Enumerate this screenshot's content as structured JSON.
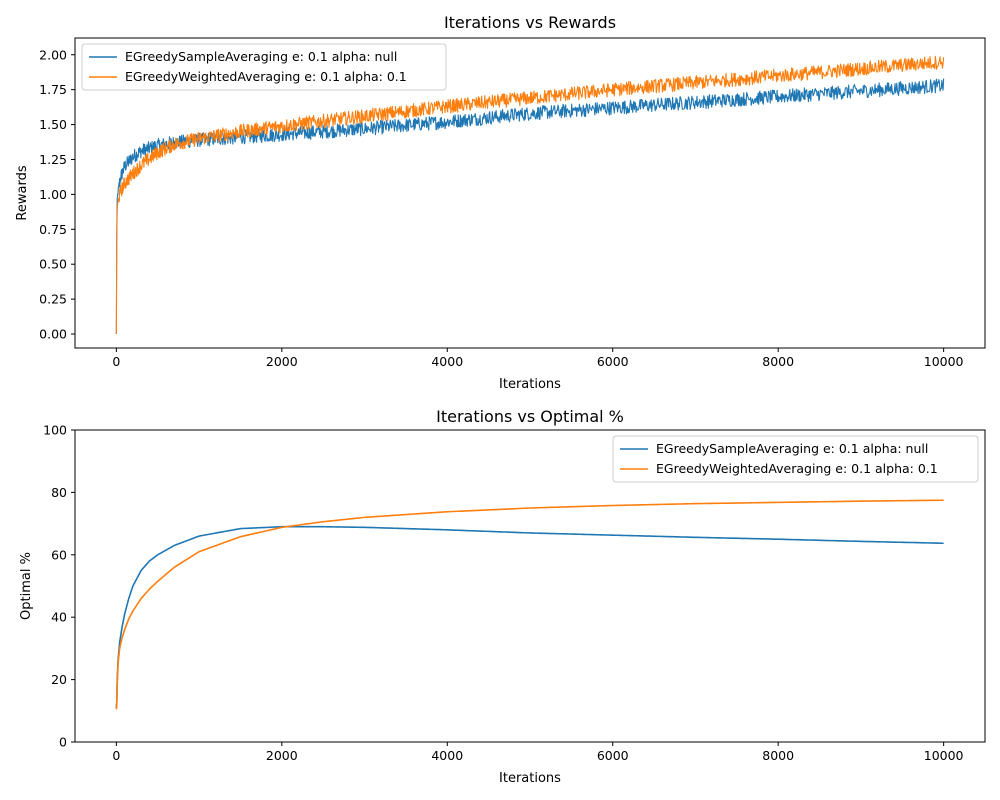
{
  "chart_data": [
    {
      "type": "line",
      "title": "Iterations vs Rewards",
      "xlabel": "Iterations",
      "ylabel": "Rewards",
      "xlim": [
        -500,
        10500
      ],
      "ylim": [
        -0.1,
        2.12
      ],
      "xticks": [
        0,
        2000,
        4000,
        6000,
        8000,
        10000
      ],
      "xtick_labels": [
        "0",
        "2000",
        "4000",
        "6000",
        "8000",
        "10000"
      ],
      "yticks": [
        0.0,
        0.25,
        0.5,
        0.75,
        1.0,
        1.25,
        1.5,
        1.75,
        2.0
      ],
      "ytick_labels": [
        "0.00",
        "0.25",
        "0.50",
        "0.75",
        "1.00",
        "1.25",
        "1.50",
        "1.75",
        "2.00"
      ],
      "grid": false,
      "legend_position": "top-left",
      "noisy": true,
      "series": [
        {
          "name": "EGreedySampleAveraging e: 0.1 alpha: null",
          "color": "#1f77b4",
          "x": [
            0,
            5,
            10,
            20,
            50,
            100,
            200,
            300,
            500,
            700,
            1000,
            1500,
            2000,
            3000,
            4000,
            5000,
            6000,
            7000,
            8000,
            9000,
            10000
          ],
          "y": [
            0.0,
            0.75,
            0.95,
            1.02,
            1.12,
            1.2,
            1.27,
            1.31,
            1.35,
            1.37,
            1.39,
            1.41,
            1.43,
            1.47,
            1.52,
            1.58,
            1.62,
            1.66,
            1.7,
            1.74,
            1.78
          ],
          "noise_amplitude": 0.05
        },
        {
          "name": "EGreedyWeightedAveraging e: 0.1 alpha: 0.1",
          "color": "#ff7f0e",
          "x": [
            0,
            5,
            10,
            20,
            50,
            100,
            200,
            300,
            500,
            700,
            1000,
            1500,
            2000,
            3000,
            4000,
            5000,
            6000,
            7000,
            8000,
            9000,
            10000
          ],
          "y": [
            0.0,
            0.7,
            0.88,
            0.95,
            1.02,
            1.08,
            1.15,
            1.21,
            1.3,
            1.36,
            1.4,
            1.45,
            1.49,
            1.56,
            1.63,
            1.69,
            1.75,
            1.8,
            1.85,
            1.9,
            1.95
          ],
          "noise_amplitude": 0.05
        }
      ]
    },
    {
      "type": "line",
      "title": "Iterations vs Optimal %",
      "xlabel": "Iterations",
      "ylabel": "Optimal %",
      "xlim": [
        -500,
        10500
      ],
      "ylim": [
        0,
        100
      ],
      "xticks": [
        0,
        2000,
        4000,
        6000,
        8000,
        10000
      ],
      "xtick_labels": [
        "0",
        "2000",
        "4000",
        "6000",
        "8000",
        "10000"
      ],
      "yticks": [
        0,
        20,
        40,
        60,
        80,
        100
      ],
      "ytick_labels": [
        "0",
        "20",
        "40",
        "60",
        "80",
        "100"
      ],
      "grid": false,
      "legend_position": "top-right",
      "noisy": false,
      "series": [
        {
          "name": "EGreedySampleAveraging e: 0.1 alpha: null",
          "color": "#1f77b4",
          "x": [
            0,
            5,
            10,
            20,
            40,
            70,
            100,
            150,
            200,
            300,
            400,
            500,
            700,
            1000,
            1500,
            2000,
            2500,
            3000,
            4000,
            5000,
            6000,
            7000,
            8000,
            9000,
            10000
          ],
          "y": [
            11,
            13,
            20,
            26,
            32,
            37,
            41,
            46,
            50,
            55,
            58,
            60,
            63,
            66,
            68.4,
            69,
            69,
            68.8,
            68,
            67,
            66.3,
            65.6,
            65,
            64.3,
            63.7
          ]
        },
        {
          "name": "EGreedyWeightedAveraging e: 0.1 alpha: 0.1",
          "color": "#ff7f0e",
          "x": [
            0,
            5,
            10,
            20,
            40,
            70,
            100,
            150,
            200,
            300,
            400,
            500,
            700,
            1000,
            1500,
            2000,
            2500,
            3000,
            4000,
            5000,
            6000,
            7000,
            8000,
            9000,
            10000
          ],
          "y": [
            10.5,
            12,
            18,
            25,
            30,
            33.5,
            36,
            39.5,
            42,
            46,
            49,
            51.5,
            56,
            61,
            65.8,
            68.8,
            70.6,
            72,
            73.8,
            75,
            75.8,
            76.4,
            76.8,
            77.2,
            77.5
          ]
        }
      ]
    }
  ]
}
